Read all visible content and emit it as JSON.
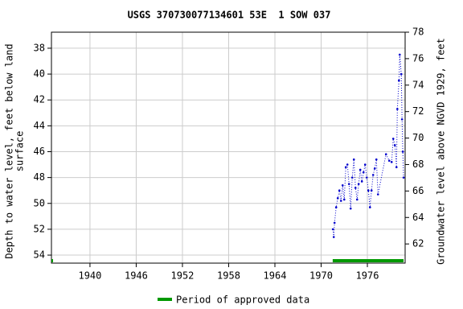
{
  "chart_data": {
    "type": "scatter",
    "title": "USGS 370730077134601 53E  1 SOW 037",
    "ylabel": [
      "Depth to water level, feet below land",
      "surface"
    ],
    "y2label": "Groundwater level above NGVD 1929, feet",
    "xlim": [
      1935.0,
      1980.9
    ],
    "xticks": [
      1940,
      1946,
      1952,
      1958,
      1964,
      1970,
      1976
    ],
    "ylim": [
      36.76,
      54.62
    ],
    "y_inverted": true,
    "yticks": [
      38,
      40,
      42,
      44,
      46,
      48,
      50,
      52,
      54
    ],
    "y2lim": [
      60.55,
      78
    ],
    "y2ticks": [
      62,
      64,
      66,
      68,
      70,
      72,
      74,
      76,
      78
    ],
    "grid": true,
    "series": [
      {
        "color": "#0000cc",
        "x": [
          1971.53,
          1971.64,
          1971.74,
          1971.95,
          1972.16,
          1972.37,
          1972.58,
          1972.79,
          1973.0,
          1973.2,
          1973.41,
          1973.62,
          1973.83,
          1974.04,
          1974.25,
          1974.46,
          1974.67,
          1974.87,
          1975.08,
          1975.29,
          1975.5,
          1975.71,
          1975.92,
          1976.13,
          1976.34,
          1976.54,
          1976.75,
          1976.96,
          1977.17,
          1977.38,
          1978.42,
          1978.84,
          1979.15,
          1979.36,
          1979.57,
          1979.78,
          1979.89,
          1980.1,
          1980.2,
          1980.4,
          1980.5,
          1980.6,
          1980.7
        ],
        "values": [
          52.0,
          52.6,
          51.5,
          50.3,
          49.6,
          49.0,
          49.8,
          48.6,
          49.7,
          47.2,
          47.0,
          48.5,
          50.4,
          48.0,
          46.6,
          48.8,
          49.7,
          48.5,
          47.4,
          48.3,
          47.6,
          47.0,
          48.0,
          49.0,
          50.3,
          49.0,
          47.8,
          47.3,
          46.6,
          49.3,
          46.2,
          46.7,
          46.8,
          45.0,
          45.5,
          47.2,
          42.7,
          40.5,
          38.5,
          40.0,
          43.5,
          46.0,
          48.0
        ]
      }
    ],
    "approved": {
      "name": "Period of approved data",
      "color": "#009900",
      "periods": [
        [
          1935.0,
          1935.1
        ],
        [
          1971.5,
          1980.7
        ]
      ]
    }
  }
}
